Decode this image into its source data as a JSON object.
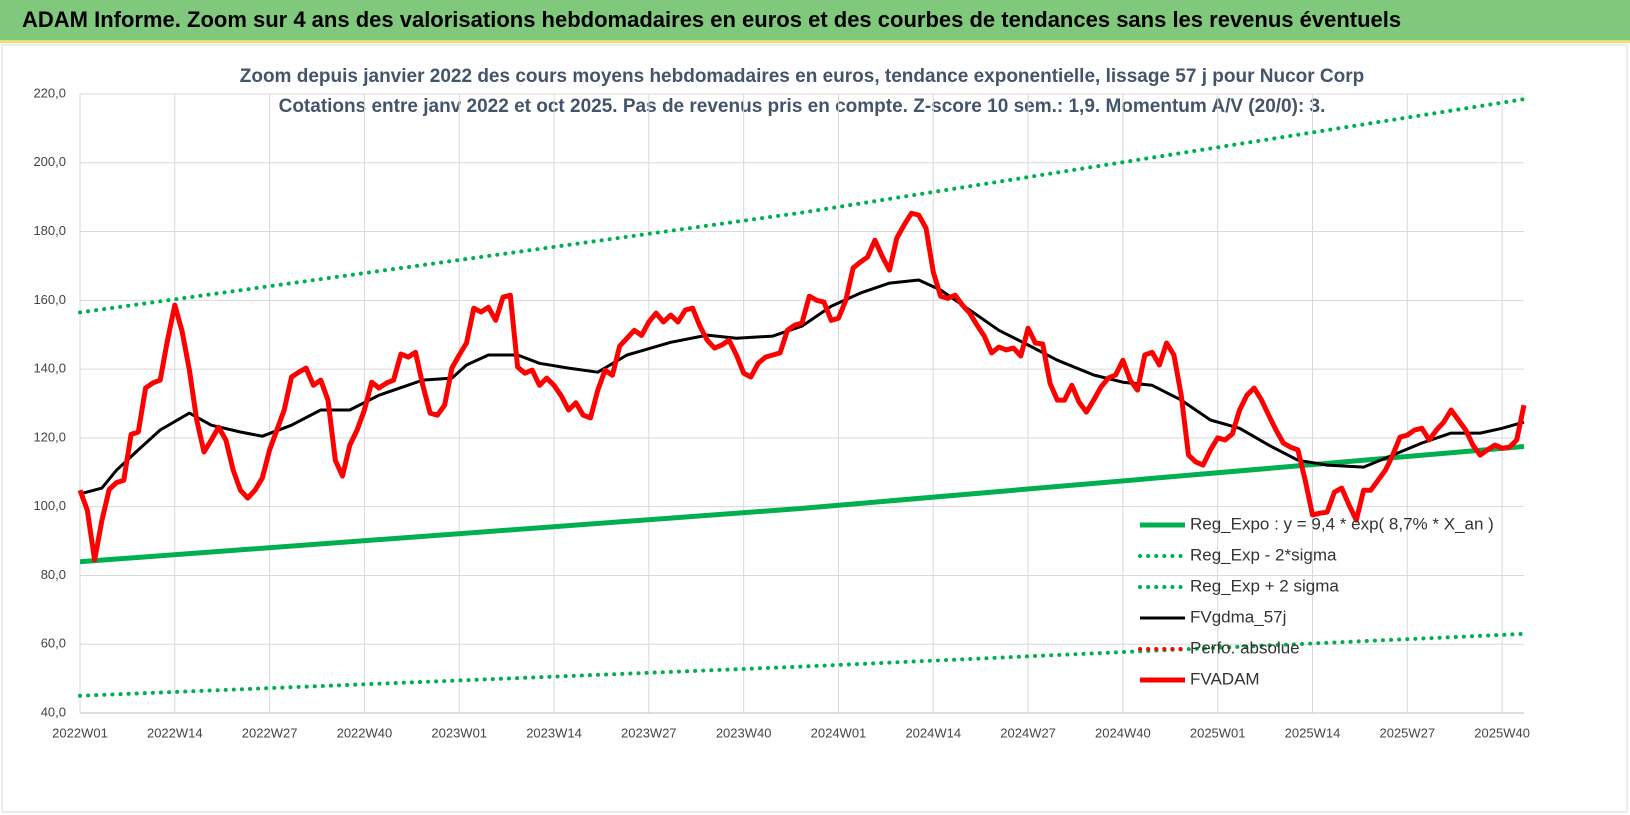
{
  "header": {
    "title": "ADAM Informe. Zoom sur 4 ans des valorisations hebdomadaires en euros et des courbes de tendances sans les revenus éventuels"
  },
  "chart_data": {
    "type": "line",
    "title": "Zoom depuis janvier 2022 des cours moyens hebdomadaires en euros, tendance exponentielle, lissage 57 j pour Nucor Corp",
    "subtitle": "Cotations entre janv 2022 et oct 2025. Pas de revenus pris en compte. Z-score 10 sem.: 1,9. Momentum A/V (20/0): 3.",
    "x": [
      0,
      1,
      2,
      3,
      4,
      5,
      6,
      7,
      8,
      9,
      10,
      11,
      12,
      13,
      14,
      15,
      16,
      17,
      18,
      19,
      20,
      21,
      22,
      23,
      24,
      25,
      26,
      27,
      28,
      29,
      30,
      31,
      32,
      33,
      34,
      35,
      36,
      37,
      38,
      39,
      40,
      41,
      42,
      43,
      44,
      45,
      46,
      47,
      48,
      49,
      50,
      51,
      52,
      53,
      54,
      55,
      56,
      57,
      58,
      59,
      60,
      61,
      62,
      63,
      64,
      65,
      66,
      67,
      68,
      69,
      70,
      71,
      72,
      73,
      74,
      75,
      76,
      77,
      78,
      79,
      80,
      81,
      82,
      83,
      84,
      85,
      86,
      87,
      88,
      89,
      90,
      91,
      92,
      93,
      94,
      95,
      96,
      97,
      98,
      99,
      100,
      101,
      102,
      103,
      104,
      105,
      106,
      107,
      108,
      109,
      110,
      111,
      112,
      113,
      114,
      115,
      116,
      117,
      118,
      119,
      120,
      121,
      122,
      123,
      124,
      125,
      126,
      127,
      128,
      129,
      130,
      131,
      132,
      133,
      134,
      135,
      136,
      137,
      138,
      139,
      140,
      141,
      142,
      143,
      144,
      145,
      146,
      147,
      148,
      149,
      150,
      151,
      152,
      153,
      154,
      155,
      156,
      157,
      158,
      159,
      160,
      161,
      162,
      163,
      164,
      165,
      166,
      167,
      168,
      169,
      170,
      171,
      172,
      173,
      174,
      175,
      176,
      177,
      178,
      179,
      180,
      181,
      182,
      183,
      184,
      185,
      186,
      187,
      188,
      189,
      190,
      191,
      192,
      193,
      194,
      195,
      196,
      197,
      198
    ],
    "series": [
      {
        "name": "Reg_Expo : y = 9,4 * exp( 8,7% *  X_an )",
        "color": "#00b050",
        "style": "solid",
        "x": [
          0,
          99,
          198
        ],
        "values": [
          84,
          99.5,
          117.5
        ]
      },
      {
        "name": "Reg_Exp - 2*sigma",
        "color": "#00b050",
        "style": "dotted",
        "x": [
          0,
          99,
          198
        ],
        "values": [
          45,
          53.5,
          63
        ]
      },
      {
        "name": "Reg_Exp + 2 sigma",
        "color": "#00b050",
        "style": "dotted",
        "x": [
          0,
          99,
          198
        ],
        "values": [
          156.5,
          185.5,
          218.5
        ]
      },
      {
        "name": "FVgdma_57j",
        "color": "#000000",
        "style": "solid",
        "x": [
          0,
          3,
          5,
          8,
          11,
          15,
          18,
          22,
          25,
          29,
          33,
          37,
          41,
          47,
          51,
          53,
          56,
          60,
          63,
          67,
          71,
          75,
          81,
          86,
          90,
          95,
          99,
          103,
          107,
          111,
          115,
          118,
          122,
          126,
          130,
          134,
          139,
          143,
          147,
          151,
          155,
          159,
          163,
          167,
          171,
          176,
          180,
          184,
          188,
          192,
          195,
          198
        ],
        "values": [
          103.7,
          105.4,
          110.6,
          116.5,
          122.3,
          127.2,
          123.7,
          121.7,
          120.5,
          123.7,
          128.1,
          128.1,
          132.4,
          136.8,
          137.4,
          141.2,
          144.1,
          144.1,
          141.7,
          140.3,
          139.1,
          144.1,
          147.8,
          149.9,
          149,
          149.6,
          152.5,
          158.3,
          162.1,
          165,
          165.9,
          163,
          157.2,
          151.3,
          147,
          142.6,
          138.3,
          136.2,
          135.3,
          131,
          125.2,
          122.8,
          117.9,
          113.5,
          112.1,
          111.5,
          115,
          118.5,
          121.4,
          121.4,
          122.8,
          124.6
        ]
      },
      {
        "name": "Perfo. absolue",
        "color": "#ff0000",
        "style": "dotted",
        "x": [],
        "values": []
      },
      {
        "name": "FVADAM",
        "color": "#ff0000",
        "style": "solid",
        "values": [
          104.8,
          99,
          84.5,
          96,
          105,
          107,
          107.7,
          121,
          121.7,
          134.5,
          136,
          136.8,
          148.4,
          158.6,
          151,
          139.7,
          125.2,
          115.9,
          119.4,
          123.1,
          119.4,
          110.6,
          104.8,
          102.5,
          104.8,
          108.3,
          116.5,
          122.3,
          128.1,
          137.7,
          139.1,
          140.3,
          135.3,
          136.8,
          131,
          113.5,
          108.9,
          117.9,
          122.3,
          128.1,
          136.2,
          134.5,
          135.9,
          136.8,
          144.4,
          143.5,
          144.9,
          135.3,
          127.2,
          126.6,
          129.5,
          140.3,
          144.1,
          147.6,
          157.7,
          156.6,
          158,
          154.2,
          160.9,
          161.5,
          140.6,
          138.8,
          139.7,
          135.3,
          137.4,
          135.3,
          132.2,
          128.1,
          130.2,
          126.6,
          125.8,
          133.9,
          139.7,
          138.2,
          146.7,
          149,
          151.3,
          149.8,
          153.7,
          156.3,
          153.7,
          155.7,
          153.7,
          157.2,
          157.7,
          152.5,
          148.4,
          146.1,
          147,
          148.4,
          144.1,
          138.8,
          137.7,
          141.7,
          143.5,
          144.1,
          144.7,
          151.3,
          152.8,
          153.4,
          161.2,
          160,
          159.5,
          154.2,
          154.8,
          160,
          169.4,
          171.1,
          172.6,
          177.5,
          172.8,
          168.8,
          178.1,
          181.9,
          185.3,
          184.8,
          181,
          168.2,
          161.2,
          160.6,
          161.5,
          158.6,
          156.3,
          152.8,
          149.6,
          144.7,
          146.4,
          145.6,
          146.1,
          143.8,
          151.9,
          147.6,
          147.3,
          135.9,
          131,
          131,
          135.3,
          130.4,
          127.5,
          131,
          134.8,
          137.4,
          138.3,
          142.6,
          136.8,
          133.9,
          144.1,
          144.9,
          141.2,
          147.6,
          144.1,
          132.4,
          115,
          113,
          112.1,
          116.5,
          120,
          119.4,
          121.1,
          128.1,
          132.4,
          134.5,
          131,
          126.6,
          122.3,
          118.5,
          117.3,
          116.5,
          107.7,
          97.6,
          98.1,
          98.4,
          104.2,
          105.4,
          100.5,
          96.1,
          104.8,
          104.8,
          107.7,
          110.6,
          115,
          120.2,
          120.8,
          122.3,
          122.8,
          119.4,
          122.3,
          124.6,
          128.1,
          125.2,
          122.3,
          117.9,
          115,
          116.5,
          117.9,
          117,
          117.3,
          119.4,
          129.5
        ]
      }
    ],
    "xlim": [
      0,
      198
    ],
    "xticks": [
      {
        "value": 0,
        "label": "2022W01"
      },
      {
        "value": 13,
        "label": "2022W14"
      },
      {
        "value": 26,
        "label": "2022W27"
      },
      {
        "value": 39,
        "label": "2022W40"
      },
      {
        "value": 52,
        "label": "2023W01"
      },
      {
        "value": 65,
        "label": "2023W14"
      },
      {
        "value": 78,
        "label": "2023W27"
      },
      {
        "value": 91,
        "label": "2023W40"
      },
      {
        "value": 104,
        "label": "2024W01"
      },
      {
        "value": 117,
        "label": "2024W14"
      },
      {
        "value": 130,
        "label": "2024W27"
      },
      {
        "value": 143,
        "label": "2024W40"
      },
      {
        "value": 156,
        "label": "2025W01"
      },
      {
        "value": 169,
        "label": "2025W14"
      },
      {
        "value": 182,
        "label": "2025W27"
      },
      {
        "value": 195,
        "label": "2025W40"
      }
    ],
    "ylim": [
      40,
      220
    ],
    "yticks": [
      {
        "value": 40,
        "label": "40,0"
      },
      {
        "value": 60,
        "label": "60,0"
      },
      {
        "value": 80,
        "label": "80,0"
      },
      {
        "value": 100,
        "label": "100,0"
      },
      {
        "value": 120,
        "label": "120,0"
      },
      {
        "value": 140,
        "label": "140,0"
      },
      {
        "value": 160,
        "label": "160,0"
      },
      {
        "value": 180,
        "label": "180,0"
      },
      {
        "value": 200,
        "label": "200,0"
      },
      {
        "value": 220,
        "label": "220,0"
      }
    ],
    "grid": true,
    "legend": "lower right"
  }
}
